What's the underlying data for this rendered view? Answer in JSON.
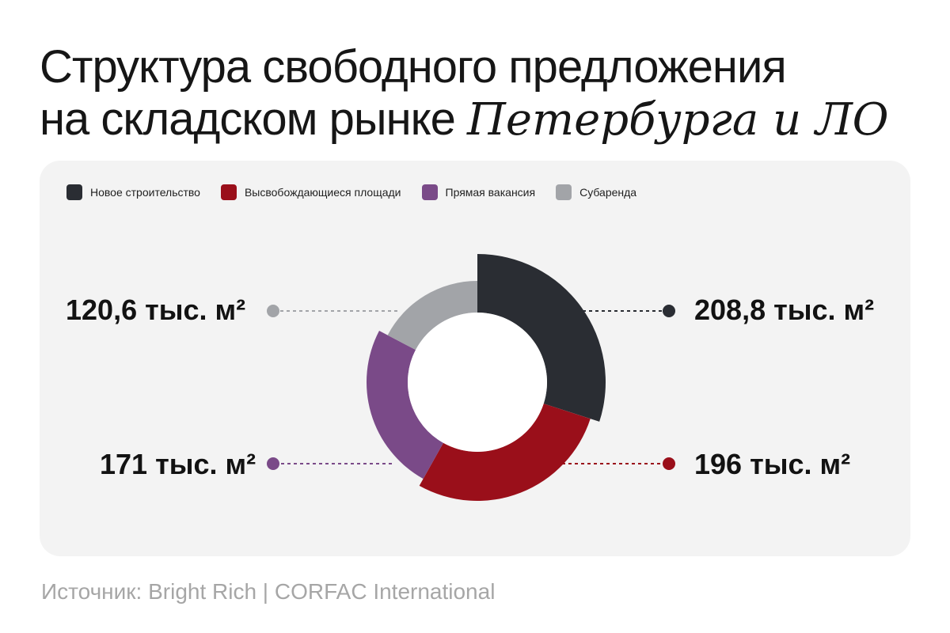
{
  "title": {
    "line1": "Структура свободного предложения",
    "line2_plain": "на складском рынке ",
    "line2_accent": "Петербурга и ЛО"
  },
  "source": "Источник: Bright Rich | CORFAC International",
  "chart_data": {
    "type": "pie",
    "variant": "donut",
    "unit": "тыс. м²",
    "legend_position": "top-left",
    "slices": [
      {
        "name": "Новое строительство",
        "value": 208.8,
        "label": "208,8 тыс. м²",
        "color": "#2a2d33"
      },
      {
        "name": "Высвобождающиеся площади",
        "value": 196,
        "label": "196 тыс. м²",
        "color": "#9a0f1a"
      },
      {
        "name": "Прямая вакансия",
        "value": 171,
        "label": "171 тыс. м²",
        "color": "#7a4a88"
      },
      {
        "name": "Субаренда",
        "value": 120.6,
        "label": "120,6 тыс. м²",
        "color": "#a2a4a8"
      }
    ]
  }
}
